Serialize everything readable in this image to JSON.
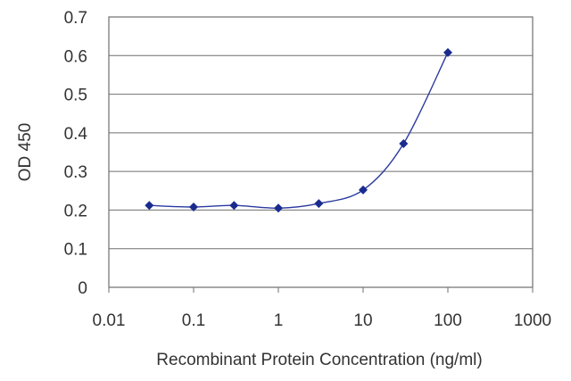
{
  "chart_data": {
    "type": "line",
    "title": "",
    "xlabel": "Recombinant Protein Concentration (ng/ml)",
    "ylabel": "OD 450",
    "xscale": "log",
    "xlim": [
      0.01,
      1000
    ],
    "ylim": [
      0,
      0.7
    ],
    "xticks": [
      0.01,
      0.1,
      1,
      10,
      100,
      1000
    ],
    "xtick_labels": [
      "0.01",
      "0.1",
      "1",
      "10",
      "100",
      "1000"
    ],
    "yticks": [
      0,
      0.1,
      0.2,
      0.3,
      0.4,
      0.5,
      0.6,
      0.7
    ],
    "ytick_labels": [
      "0",
      "0.1",
      "0.2",
      "0.3",
      "0.4",
      "0.5",
      "0.6",
      "0.7"
    ],
    "grid": "horizontal",
    "legend": "none",
    "series": [
      {
        "x": [
          0.03,
          0.1,
          0.3,
          1,
          3,
          10,
          30,
          100
        ],
        "y": [
          0.212,
          0.208,
          0.212,
          0.205,
          0.217,
          0.252,
          0.372,
          0.608
        ]
      }
    ],
    "colors": {
      "line": "#2b3aa0",
      "marker": "#1a2b8f",
      "grid": "#6f6f6f",
      "frame": "#6f6f6f"
    }
  }
}
